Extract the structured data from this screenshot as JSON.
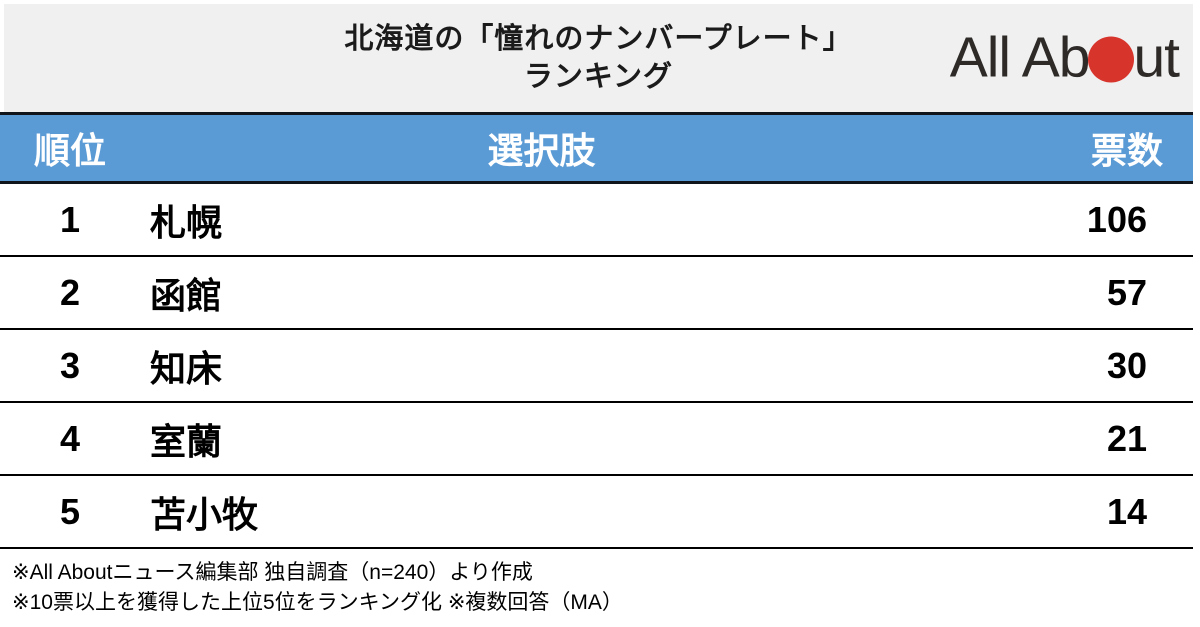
{
  "title": {
    "line1": "北海道の「憧れのナンバープレート」",
    "line2": "ランキング"
  },
  "logo": {
    "text_before_dot": "All Ab",
    "text_after_dot": "ut",
    "dot_color": "#d7342c",
    "text_color": "#2e2a28"
  },
  "table": {
    "header_bg_color": "#5b9bd5",
    "headers": {
      "rank": "順位",
      "choice": "選択肢",
      "votes": "票数"
    },
    "rows": [
      {
        "rank": "1",
        "choice": "札幌",
        "votes": "106"
      },
      {
        "rank": "2",
        "choice": "函館",
        "votes": "57"
      },
      {
        "rank": "3",
        "choice": "知床",
        "votes": "30"
      },
      {
        "rank": "4",
        "choice": "室蘭",
        "votes": "21"
      },
      {
        "rank": "5",
        "choice": "苫小牧",
        "votes": "14"
      }
    ]
  },
  "footnotes": {
    "line1": "※All Aboutニュース編集部 独自調査（n=240）より作成",
    "line2": "※10票以上を獲得した上位5位をランキング化 ※複数回答（MA）"
  },
  "chart_data": {
    "type": "table",
    "title": "北海道の「憧れのナンバープレート」ランキング",
    "columns": [
      "順位",
      "選択肢",
      "票数"
    ],
    "categories": [
      "札幌",
      "函館",
      "知床",
      "室蘭",
      "苫小牧"
    ],
    "values": [
      106,
      57,
      30,
      21,
      14
    ],
    "source_note": "All Aboutニュース編集部 独自調査（n=240）より作成",
    "method_note": "10票以上を獲得した上位5位をランキング化 複数回答（MA）"
  }
}
